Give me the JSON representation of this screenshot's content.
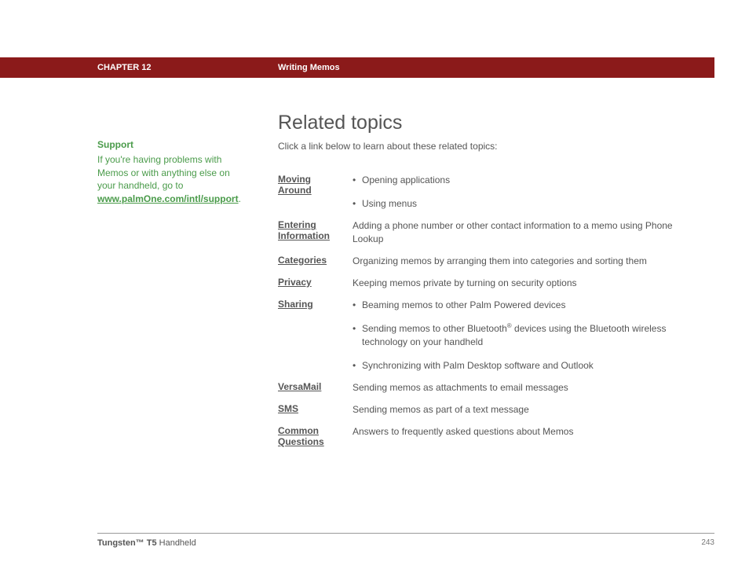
{
  "header": {
    "chapter": "CHAPTER 12",
    "section": "Writing Memos"
  },
  "sidebar": {
    "title": "Support",
    "text_before": "If you're having problems with Memos or with anything else on your handheld, go to ",
    "link_text": "www.palmOne.com/intl/support",
    "text_after": "."
  },
  "main": {
    "title": "Related topics",
    "intro": "Click a link below to learn about these related topics:",
    "topics": [
      {
        "label": "Moving Around",
        "bullets": [
          "Opening applications",
          "Using menus"
        ]
      },
      {
        "label": "Entering Information",
        "text": "Adding a phone number or other contact information to a memo using Phone Lookup"
      },
      {
        "label": "Categories",
        "text": "Organizing memos by arranging them into categories and sorting them"
      },
      {
        "label": "Privacy",
        "text": "Keeping memos private by turning on security options"
      },
      {
        "label": "Sharing",
        "bullets": [
          "Beaming memos to other Palm Powered devices",
          "Sending memos to other Bluetooth® devices using the Bluetooth wireless technology on your handheld",
          "Synchronizing with Palm Desktop software and Outlook"
        ]
      },
      {
        "label": "VersaMail",
        "text": "Sending memos as attachments to email messages"
      },
      {
        "label": "SMS",
        "text": "Sending memos as part of a text message"
      },
      {
        "label": "Common Questions",
        "text": "Answers to frequently asked questions about Memos"
      }
    ]
  },
  "footer": {
    "product_bold": "Tungsten™ T5",
    "product_rest": " Handheld",
    "page": "243"
  },
  "colors": {
    "header_bg": "#8b1a1a",
    "sidebar_green": "#4a9b4a",
    "body_text": "#555555"
  }
}
